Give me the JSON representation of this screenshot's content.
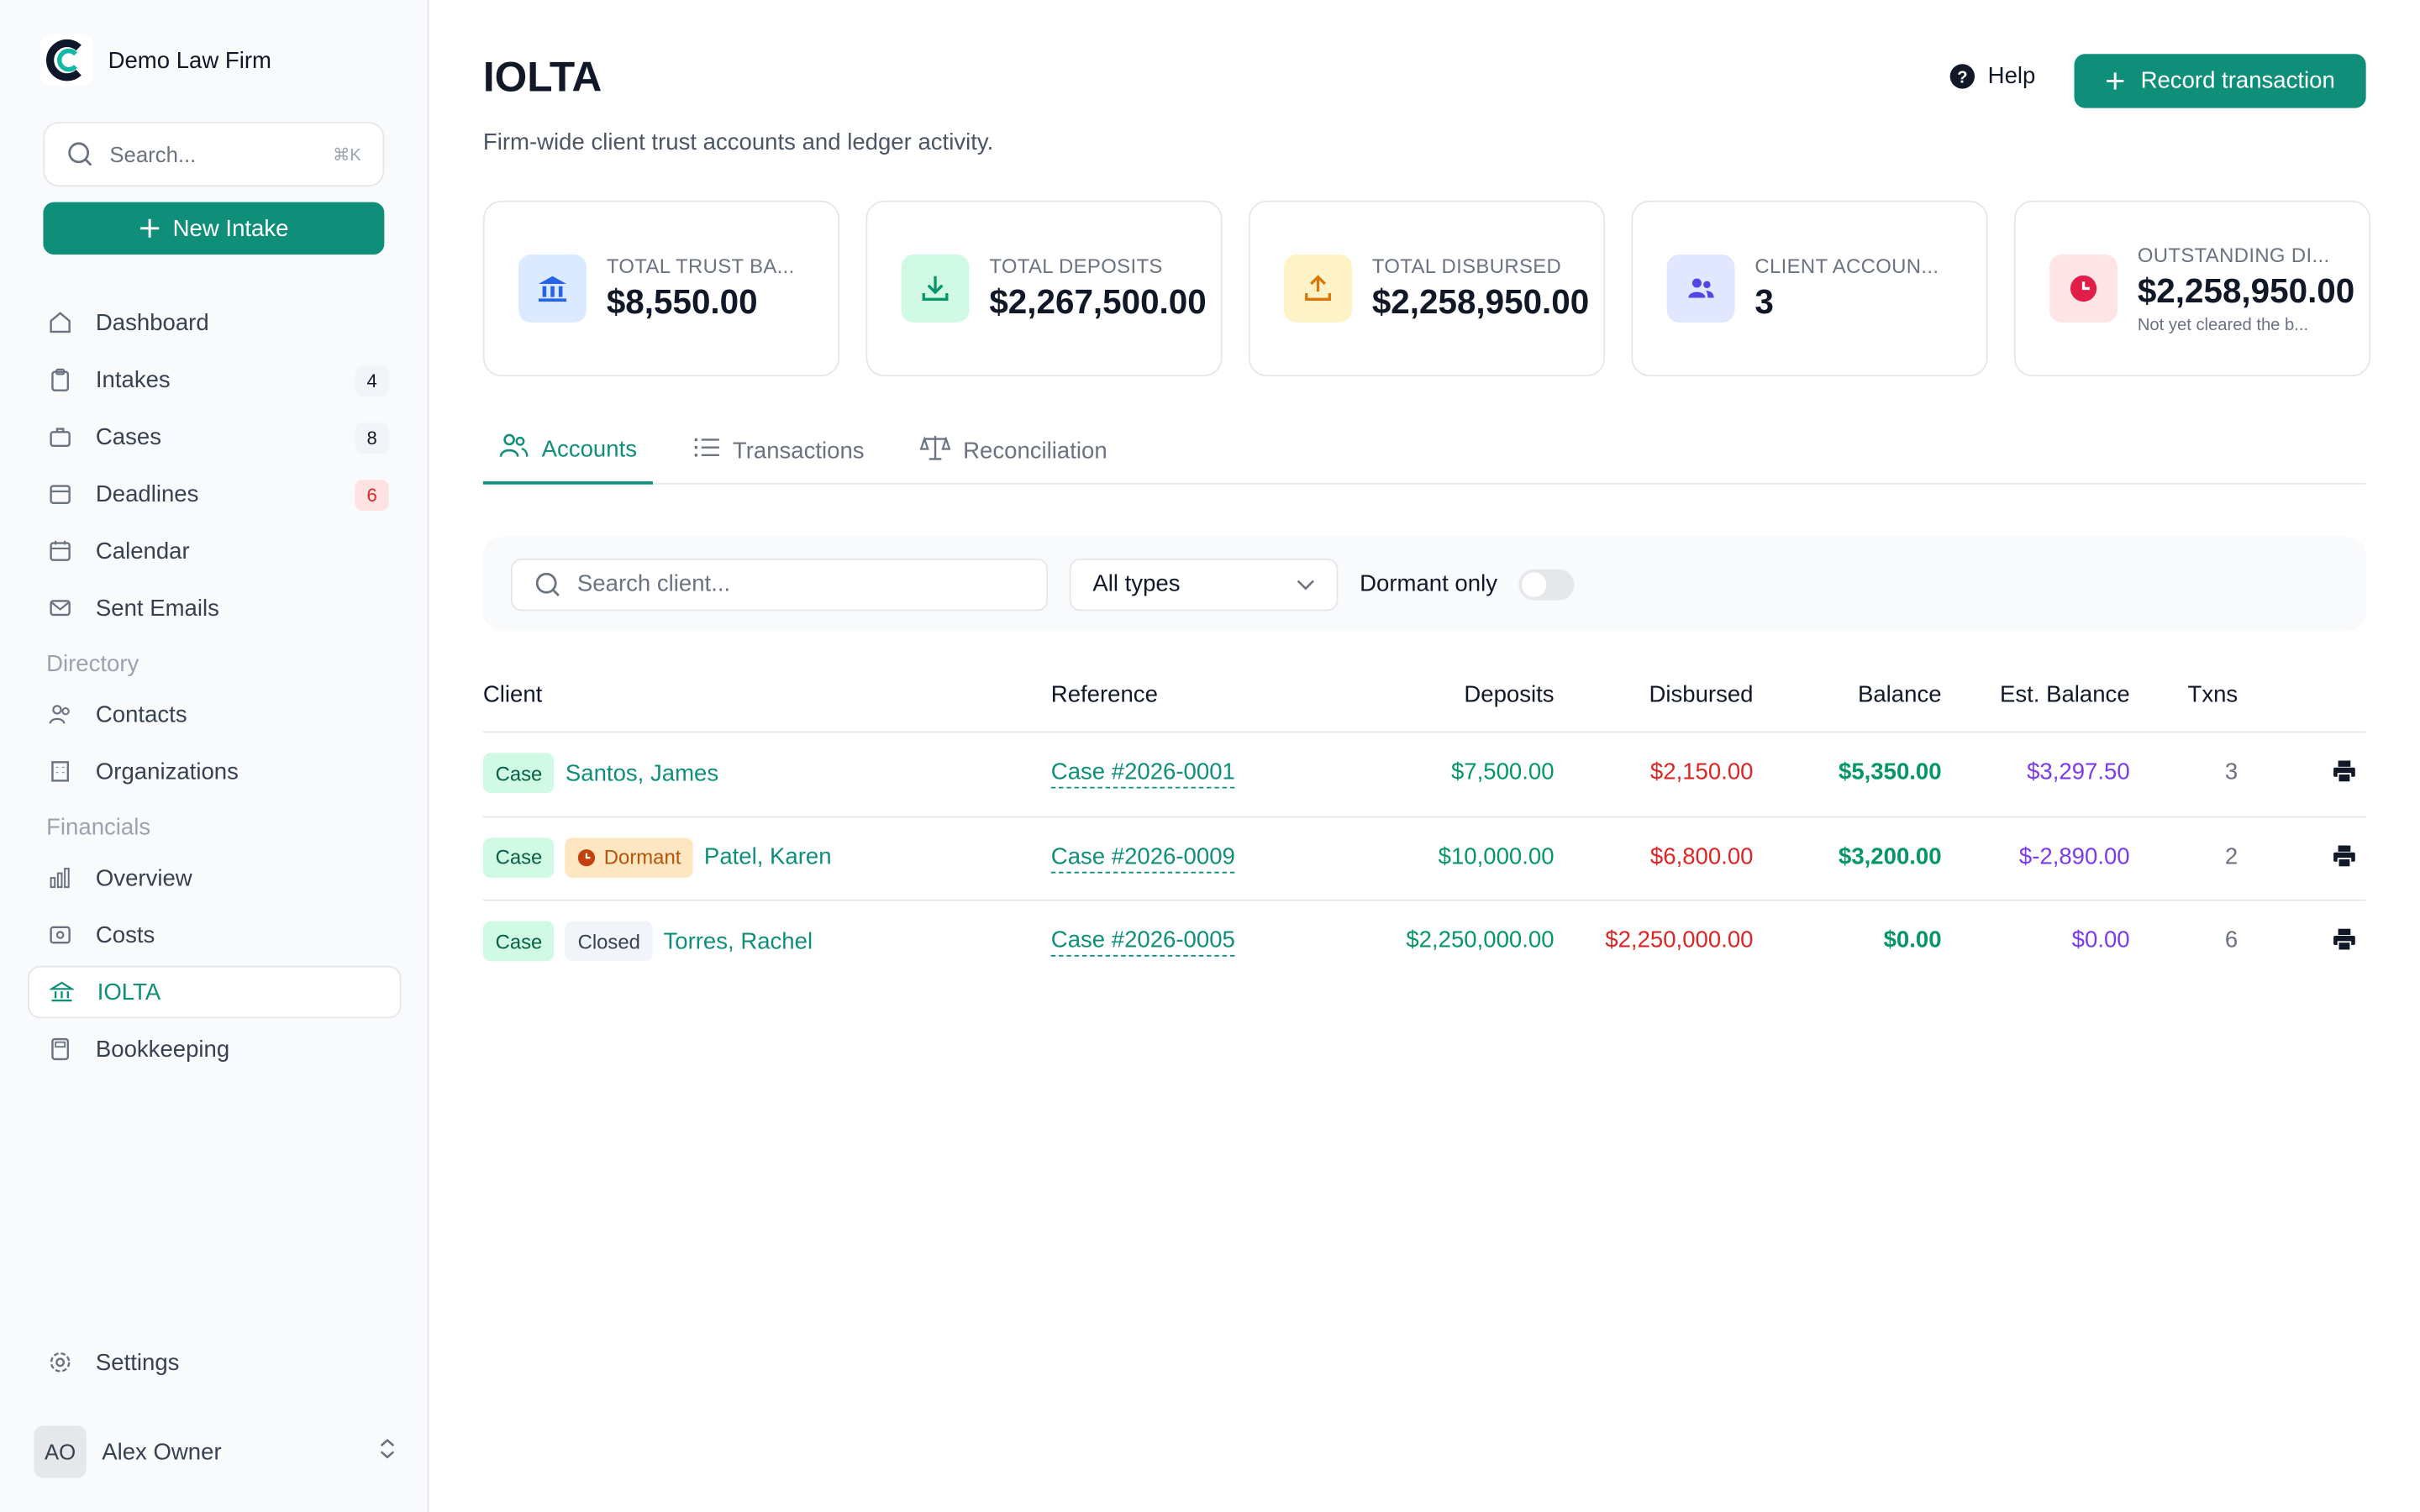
{
  "brand": {
    "name": "Demo Law Firm"
  },
  "sidebar": {
    "search_placeholder": "Search...",
    "search_shortcut": "⌘K",
    "new_intake_label": "New Intake",
    "items": [
      {
        "label": "Dashboard",
        "icon": "home-icon"
      },
      {
        "label": "Intakes",
        "icon": "clipboard-icon",
        "badge": "4"
      },
      {
        "label": "Cases",
        "icon": "briefcase-icon",
        "badge": "8"
      },
      {
        "label": "Deadlines",
        "icon": "calendar-alert-icon",
        "badge": "6"
      },
      {
        "label": "Calendar",
        "icon": "calendar-icon"
      },
      {
        "label": "Sent Emails",
        "icon": "mail-icon"
      }
    ],
    "directory_label": "Directory",
    "directory_items": [
      {
        "label": "Contacts",
        "icon": "users-icon"
      },
      {
        "label": "Organizations",
        "icon": "building-icon"
      }
    ],
    "financials_label": "Financials",
    "financial_items": [
      {
        "label": "Overview",
        "icon": "bar-chart-icon"
      },
      {
        "label": "Costs",
        "icon": "receipt-icon"
      },
      {
        "label": "IOLTA",
        "icon": "bank-icon"
      },
      {
        "label": "Bookkeeping",
        "icon": "calculator-icon"
      }
    ],
    "settings_label": "Settings",
    "user": {
      "initials": "AO",
      "name": "Alex Owner"
    }
  },
  "header": {
    "title": "IOLTA",
    "subtitle": "Firm-wide client trust accounts and ledger activity.",
    "help_label": "Help",
    "record_label": "Record transaction"
  },
  "cards": [
    {
      "label": "TOTAL TRUST BA...",
      "value": "$8,550.00",
      "icon": "bank-icon",
      "color": "#2563eb",
      "bg": "#dbeafe"
    },
    {
      "label": "TOTAL DEPOSITS",
      "value": "$2,267,500.00",
      "icon": "download-icon",
      "color": "#059669",
      "bg": "#d1fae5"
    },
    {
      "label": "TOTAL DISBURSED",
      "value": "$2,258,950.00",
      "icon": "upload-icon",
      "color": "#d97706",
      "bg": "#fef3c7"
    },
    {
      "label": "CLIENT ACCOUN...",
      "value": "3",
      "icon": "users-icon",
      "color": "#4f46e5",
      "bg": "#e0e7ff"
    },
    {
      "label": "OUTSTANDING DI...",
      "value": "$2,258,950.00",
      "note": "Not yet cleared the b...",
      "icon": "clock-icon",
      "color": "#e11d48",
      "bg": "#ffe4e6"
    }
  ],
  "tabs": [
    {
      "label": "Accounts",
      "icon": "users-icon"
    },
    {
      "label": "Transactions",
      "icon": "list-icon"
    },
    {
      "label": "Reconciliation",
      "icon": "scale-icon"
    }
  ],
  "filters": {
    "client_search_placeholder": "Search client...",
    "type_selected": "All types",
    "dormant_label": "Dormant only"
  },
  "table": {
    "columns": [
      "Client",
      "Reference",
      "Deposits",
      "Disbursed",
      "Balance",
      "Est. Balance",
      "Txns"
    ],
    "rows": [
      {
        "tags": [
          "Case"
        ],
        "client": "Santos, James",
        "reference": "Case #2026-0001",
        "deposits": "$7,500.00",
        "disbursed": "$2,150.00",
        "balance": "$5,350.00",
        "est_balance": "$3,297.50",
        "txns": "3"
      },
      {
        "tags": [
          "Case",
          "Dormant"
        ],
        "client": "Patel, Karen",
        "reference": "Case #2026-0009",
        "deposits": "$10,000.00",
        "disbursed": "$6,800.00",
        "balance": "$3,200.00",
        "est_balance": "$-2,890.00",
        "txns": "2"
      },
      {
        "tags": [
          "Case",
          "Closed"
        ],
        "client": "Torres, Rachel",
        "reference": "Case #2026-0005",
        "deposits": "$2,250,000.00",
        "disbursed": "$2,250,000.00",
        "balance": "$0.00",
        "est_balance": "$0.00",
        "txns": "6"
      }
    ]
  },
  "colors": {
    "accent": "#0f8f7a",
    "deposit": "#059669",
    "disbursed": "#dc2626",
    "est_balance": "#7c3aed"
  }
}
